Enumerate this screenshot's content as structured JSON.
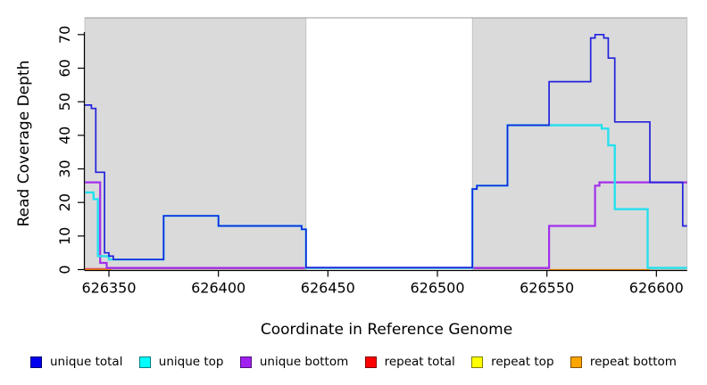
{
  "figure": {
    "background_color": "#FFFFFF",
    "shaded_region_color": "#DADADA",
    "axis_color": "#000000",
    "top_border_color": "#999999"
  },
  "chart_data": {
    "type": "line",
    "subtype": "step-coverage-plot",
    "title": "",
    "xlabel": "Coordinate in Reference Genome",
    "ylabel": "Read Coverage Depth",
    "xlim": [
      626339,
      626614
    ],
    "ylim": [
      0,
      75
    ],
    "x_ticks": [
      626350,
      626400,
      626450,
      626500,
      626550,
      626600
    ],
    "y_ticks": [
      0,
      10,
      20,
      30,
      40,
      50,
      60,
      70
    ],
    "grid": false,
    "legend_position": "bottom",
    "shaded_regions": [
      {
        "from": 626339,
        "to": 626440
      },
      {
        "from": 626516,
        "to": 626614
      }
    ],
    "series": [
      {
        "name": "repeat total",
        "color": "#DC4A6E",
        "width": 1.3,
        "points": [
          [
            626339,
            0.3
          ],
          [
            626551,
            null
          ]
        ]
      },
      {
        "name": "repeat top",
        "color": "#ABD9AB",
        "width": 1.6,
        "points": [
          [
            626597,
            0.3
          ],
          [
            626613,
            null
          ]
        ]
      },
      {
        "name": "repeat bottom",
        "color": "#FF8F00",
        "width": 2.0,
        "points": [
          [
            626339,
            -0.1
          ],
          [
            626351,
            null
          ],
          [
            626551,
            -0.1
          ],
          [
            626597,
            null
          ]
        ]
      },
      {
        "name": "unique bottom",
        "color": "#A230EC",
        "width": 2.2,
        "points": [
          [
            626339,
            26
          ],
          [
            626346,
            2
          ],
          [
            626349,
            0.5
          ],
          [
            626551,
            13
          ],
          [
            626572,
            25
          ],
          [
            626574,
            26
          ],
          [
            626614,
            null
          ]
        ]
      },
      {
        "name": "unique top",
        "color": "#25E0EE",
        "width": 2.4,
        "points": [
          [
            626339,
            23
          ],
          [
            626343,
            21
          ],
          [
            626345,
            4
          ],
          [
            626350,
            3
          ],
          [
            626375,
            16
          ],
          [
            626400,
            13
          ],
          [
            626438,
            12
          ],
          [
            626440,
            0.5
          ],
          [
            626516,
            24
          ],
          [
            626518,
            25
          ],
          [
            626532,
            43
          ],
          [
            626575,
            42
          ],
          [
            626578,
            37
          ],
          [
            626581,
            18
          ],
          [
            626596,
            0.5
          ],
          [
            626614,
            null
          ]
        ]
      },
      {
        "name": "unique total",
        "color": "#2222DD",
        "width": 1.7,
        "points": [
          [
            626339,
            49
          ],
          [
            626342,
            48
          ],
          [
            626344,
            29
          ],
          [
            626348,
            5
          ],
          [
            626350,
            4
          ],
          [
            626352,
            3
          ],
          [
            626375,
            16
          ],
          [
            626400,
            13
          ],
          [
            626438,
            12
          ],
          [
            626440,
            0.6
          ],
          [
            626516,
            24
          ],
          [
            626518,
            25
          ],
          [
            626532,
            43
          ],
          [
            626551,
            56
          ],
          [
            626570,
            69
          ],
          [
            626572,
            70
          ],
          [
            626576,
            69
          ],
          [
            626578,
            63
          ],
          [
            626581,
            44
          ],
          [
            626597,
            26
          ],
          [
            626612,
            13
          ],
          [
            626614,
            null
          ]
        ]
      }
    ],
    "legend": [
      {
        "label": "unique total",
        "color": "#0000EE"
      },
      {
        "label": "unique top",
        "color": "#00FFFF"
      },
      {
        "label": "unique bottom",
        "color": "#A020F0"
      },
      {
        "label": "repeat total",
        "color": "#FF0000"
      },
      {
        "label": "repeat top",
        "color": "#FFFF00"
      },
      {
        "label": "repeat bottom",
        "color": "#FFA500"
      }
    ]
  }
}
